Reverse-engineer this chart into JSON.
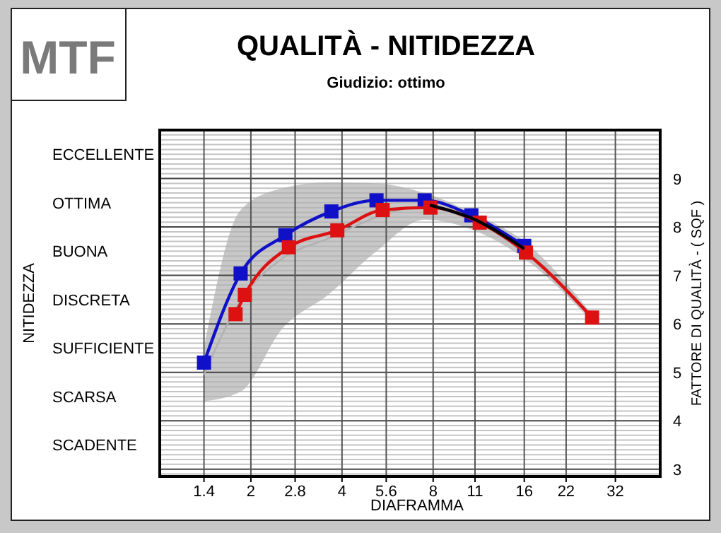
{
  "chart_data": {
    "type": "line",
    "title": "QUALITÀ - NITIDEZZA",
    "subtitle": "Giudizio: ottimo",
    "xlabel": "DIAFRAMMA",
    "ylabel": "FATTORE DI QUALITÀ - ( SQF )",
    "annotations": [
      "MTF",
      "NITIDEZZA",
      "ECCELLENTE",
      "OTTIMA",
      "BUONA",
      "DISCRETA",
      "SUFFICIENTE",
      "SCARSA",
      "SCADENTE"
    ],
    "log": "x",
    "xlim": [
      1,
      45
    ],
    "xticks": [
      1.4,
      2,
      2.8,
      4,
      5.6,
      8,
      11,
      16,
      22,
      32
    ],
    "ylim": [
      2.85,
      10
    ],
    "yticks": [
      3,
      4,
      5,
      6,
      7,
      8,
      9
    ],
    "grid": true,
    "marker": "square",
    "line_style": "solid",
    "series": [
      {
        "color": "#b0b0b0",
        "marker": "none",
        "x": [
          1.4,
          1.85,
          2.54,
          3.6,
          5.2,
          7.5,
          10.7,
          16,
          26.8
        ],
        "values": [
          4.95,
          6.48,
          7.35,
          7.76,
          8.2,
          8.43,
          8.13,
          7.53,
          6.13
        ],
        "lower": [
          4.4,
          4.6,
          5.9,
          6.6,
          7.5,
          8.15,
          7.95,
          7.35,
          6.05
        ],
        "upper": [
          5.5,
          8.35,
          8.8,
          8.92,
          8.9,
          8.7,
          8.3,
          7.7,
          6.2
        ]
      },
      {
        "color": "#1010c8",
        "x": [
          1.4,
          1.85,
          2.6,
          3.69,
          5.2,
          7.5,
          10.7,
          16
        ],
        "values": [
          5.2,
          7.04,
          7.83,
          8.32,
          8.55,
          8.55,
          8.24,
          7.61
        ]
      },
      {
        "color": "#dd1111",
        "x": [
          1.78,
          1.91,
          2.67,
          3.86,
          5.45,
          7.84,
          11.4,
          16.2,
          26.8
        ],
        "values": [
          6.2,
          6.6,
          7.58,
          7.93,
          8.35,
          8.4,
          8.09,
          7.47,
          6.13
        ]
      },
      {
        "color": "#000000",
        "marker": "none",
        "x": [
          7.8,
          11,
          16
        ],
        "values": [
          8.45,
          8.15,
          7.55
        ]
      }
    ]
  }
}
